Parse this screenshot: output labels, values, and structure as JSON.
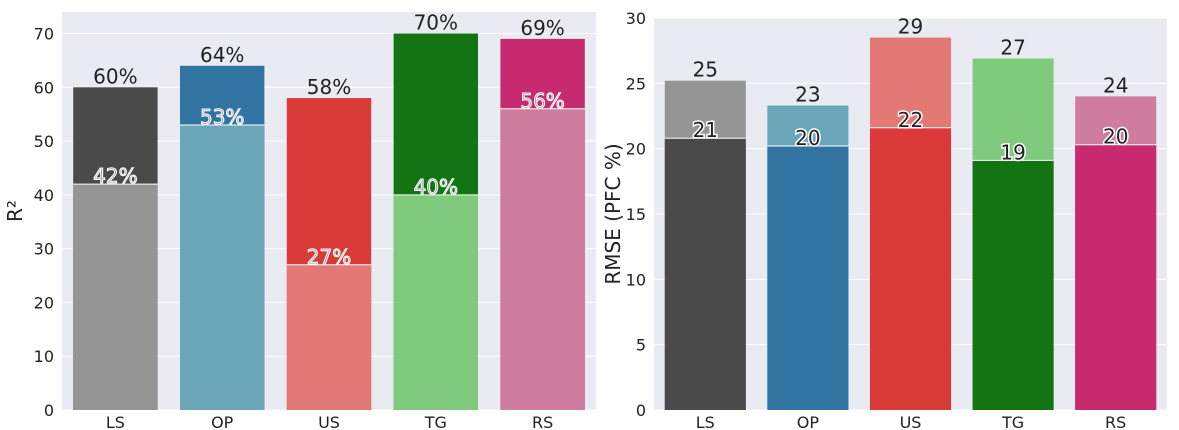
{
  "chart_data": [
    {
      "type": "bar",
      "stacked_overlay": true,
      "ylabel": "R²",
      "xlabel": "",
      "ylim": [
        0,
        74
      ],
      "yticks": [
        0,
        10,
        20,
        30,
        40,
        50,
        60,
        70
      ],
      "grid": true,
      "categories": [
        "LS",
        "OP",
        "US",
        "TG",
        "RS"
      ],
      "series": [
        {
          "values": [
            60,
            64,
            58,
            70,
            69
          ],
          "labels": [
            "60%",
            "64%",
            "58%",
            "70%",
            "69%"
          ],
          "colors": [
            "#4a4a4a",
            "#3274a1",
            "#d93a38",
            "#137413",
            "#c72a6e"
          ]
        },
        {
          "values": [
            42,
            53,
            27,
            40,
            56
          ],
          "labels": [
            "42%",
            "53%",
            "27%",
            "40%",
            "56%"
          ],
          "colors": [
            "#959595",
            "#6aa5b8",
            "#e37875",
            "#7fca7c",
            "#cf7d9e"
          ]
        }
      ]
    },
    {
      "type": "bar",
      "stacked_overlay": true,
      "ylabel": "RMSE (PFC %)",
      "xlabel": "",
      "ylim": [
        0,
        30
      ],
      "yticks": [
        0,
        5,
        10,
        15,
        20,
        25,
        30
      ],
      "grid": true,
      "categories": [
        "LS",
        "OP",
        "US",
        "TG",
        "RS"
      ],
      "series": [
        {
          "values": [
            25.2,
            23.3,
            28.5,
            26.9,
            24.0
          ],
          "labels": [
            "25",
            "23",
            "29",
            "27",
            "24"
          ],
          "colors": [
            "#959595",
            "#6aa5b8",
            "#e37875",
            "#7fca7c",
            "#cf7d9e"
          ]
        },
        {
          "values": [
            20.8,
            20.2,
            21.6,
            19.1,
            20.3
          ],
          "labels": [
            "21",
            "20",
            "22",
            "19",
            "20"
          ],
          "colors": [
            "#4a4a4a",
            "#3274a1",
            "#d93a38",
            "#137413",
            "#c72a6e"
          ]
        }
      ]
    }
  ]
}
